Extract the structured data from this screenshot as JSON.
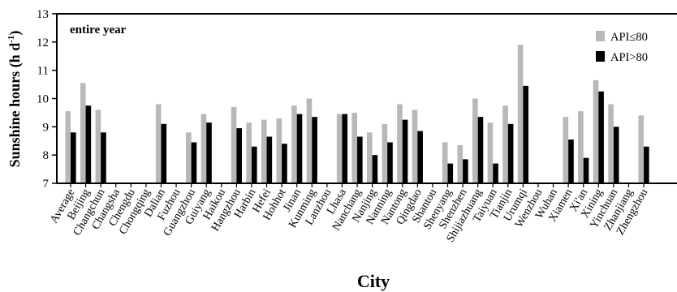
{
  "chart_data": {
    "type": "bar",
    "annotation": "entire year",
    "xlabel": "City",
    "ylabel": "Sunshine hours (h d",
    "ylabel_sup": "-1",
    "ylabel_close": ")",
    "ylim": [
      7,
      13
    ],
    "yticks": [
      7,
      8,
      9,
      10,
      11,
      12,
      13
    ],
    "legend_position": "top-right",
    "categories": [
      "Average",
      "Beijing",
      "Changchun",
      "Changsha",
      "Chengdu",
      "Chongqing",
      "Dalian",
      "Fuzhou",
      "Guangzhou",
      "Guiyang",
      "Haikou",
      "Hangzhou",
      "Harbin",
      "Hefei",
      "Hohhot",
      "Jinan",
      "Kunming",
      "Lanzhou",
      "Lhasa",
      "Nanchang",
      "Nanjing",
      "Nanning",
      "Nantong",
      "Qingdao",
      "Shantou",
      "Shenyang",
      "Shenzhen",
      "Shijiazhuang",
      "Taiyuan",
      "Tianjin",
      "Urumqi",
      "Wenzhou",
      "Wuhan",
      "Xiamen",
      "Xi'an",
      "Xining",
      "Yinchuan",
      "Zhanjiang",
      "Zhengzhou"
    ],
    "series": [
      {
        "name": "API≤80",
        "color": "#b8b8b8",
        "values": [
          9.55,
          10.55,
          9.6,
          null,
          null,
          null,
          9.8,
          null,
          8.8,
          9.45,
          null,
          9.7,
          9.15,
          9.25,
          9.3,
          9.75,
          10.0,
          null,
          9.45,
          9.5,
          8.8,
          9.1,
          9.8,
          9.6,
          null,
          8.45,
          8.35,
          10.0,
          9.15,
          9.75,
          11.9,
          null,
          null,
          9.35,
          9.55,
          10.65,
          9.8,
          null,
          9.4
        ]
      },
      {
        "name": "API>80",
        "color": "#000000",
        "values": [
          8.8,
          9.75,
          8.8,
          null,
          null,
          null,
          9.1,
          null,
          8.45,
          9.15,
          null,
          8.95,
          8.3,
          8.65,
          8.4,
          9.45,
          9.35,
          null,
          9.45,
          8.65,
          8.0,
          8.45,
          9.25,
          8.85,
          null,
          7.7,
          7.85,
          9.35,
          7.7,
          9.1,
          10.45,
          null,
          null,
          8.55,
          7.9,
          10.25,
          9.0,
          null,
          8.3
        ]
      }
    ]
  }
}
